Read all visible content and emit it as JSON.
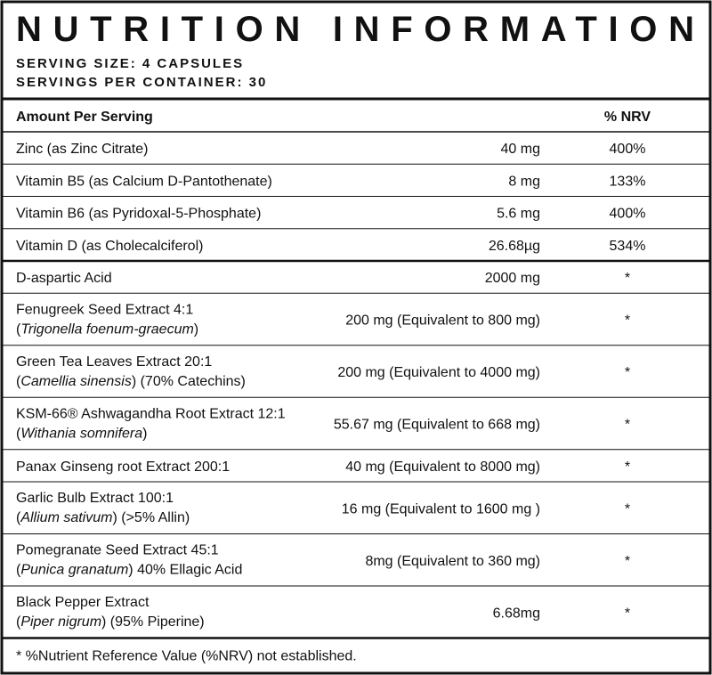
{
  "header": {
    "title": "NUTRITION INFORMATION",
    "serving_size": "SERVING SIZE: 4 CAPSULES",
    "servings_per_container": "SERVINGS PER CONTAINER: 30"
  },
  "table": {
    "columns": {
      "amount_per_serving": "Amount Per Serving",
      "nrv": "% NRV"
    },
    "vitamins": [
      {
        "name": "Zinc (as Zinc Citrate)",
        "amount": "40 mg",
        "nrv": "400%"
      },
      {
        "name": "Vitamin B5 (as Calcium D-Pantothenate)",
        "amount": "8 mg",
        "nrv": "133%"
      },
      {
        "name": "Vitamin B6 (as Pyridoxal-5-Phosphate)",
        "amount": "5.6 mg",
        "nrv": "400%"
      },
      {
        "name": "Vitamin D (as Cholecalciferol)",
        "amount": "26.68µg",
        "nrv": "534%"
      }
    ],
    "ingredients": [
      {
        "name": "D-aspartic Acid",
        "amount": "2000 mg",
        "nrv": "*"
      },
      {
        "name": "Fenugreek Seed Extract 4:1",
        "sub": [
          {
            "text": "(",
            "italic": false
          },
          {
            "text": "Trigonella foenum-graecum",
            "italic": true
          },
          {
            "text": ")",
            "italic": false
          }
        ],
        "amount": "200 mg (Equivalent to 800 mg)",
        "nrv": "*"
      },
      {
        "name": "Green Tea Leaves Extract 20:1",
        "sub": [
          {
            "text": "(",
            "italic": false
          },
          {
            "text": "Camellia sinensis",
            "italic": true
          },
          {
            "text": ") (70% Catechins)",
            "italic": false
          }
        ],
        "amount": "200 mg (Equivalent to 4000 mg)",
        "nrv": "*"
      },
      {
        "name": "KSM-66® Ashwagandha Root Extract 12:1",
        "sub": [
          {
            "text": "(",
            "italic": false
          },
          {
            "text": "Withania somnifera",
            "italic": true
          },
          {
            "text": ")",
            "italic": false
          }
        ],
        "amount": "55.67 mg (Equivalent to 668 mg)",
        "nrv": "*"
      },
      {
        "name": "Panax Ginseng root Extract 200:1",
        "amount": "40 mg (Equivalent to 8000 mg)",
        "nrv": "*"
      },
      {
        "name": "Garlic Bulb Extract 100:1",
        "sub": [
          {
            "text": "(",
            "italic": false
          },
          {
            "text": "Allium sativum",
            "italic": true
          },
          {
            "text": ") (>5% Allin)",
            "italic": false
          }
        ],
        "amount": "16 mg (Equivalent to 1600 mg )",
        "nrv": "*"
      },
      {
        "name": "Pomegranate Seed Extract 45:1",
        "sub": [
          {
            "text": "(",
            "italic": false
          },
          {
            "text": "Punica granatum",
            "italic": true
          },
          {
            "text": ") 40% Ellagic Acid",
            "italic": false
          }
        ],
        "amount": "8mg (Equivalent to 360 mg)",
        "nrv": "*"
      },
      {
        "name": "Black Pepper Extract",
        "sub": [
          {
            "text": "(",
            "italic": false
          },
          {
            "text": "Piper nigrum",
            "italic": true
          },
          {
            "text": ") (95% Piperine)",
            "italic": false
          }
        ],
        "amount": "6.68mg",
        "nrv": "*"
      }
    ],
    "footnote": "* %Nutrient Reference Value (%NRV) not established."
  }
}
